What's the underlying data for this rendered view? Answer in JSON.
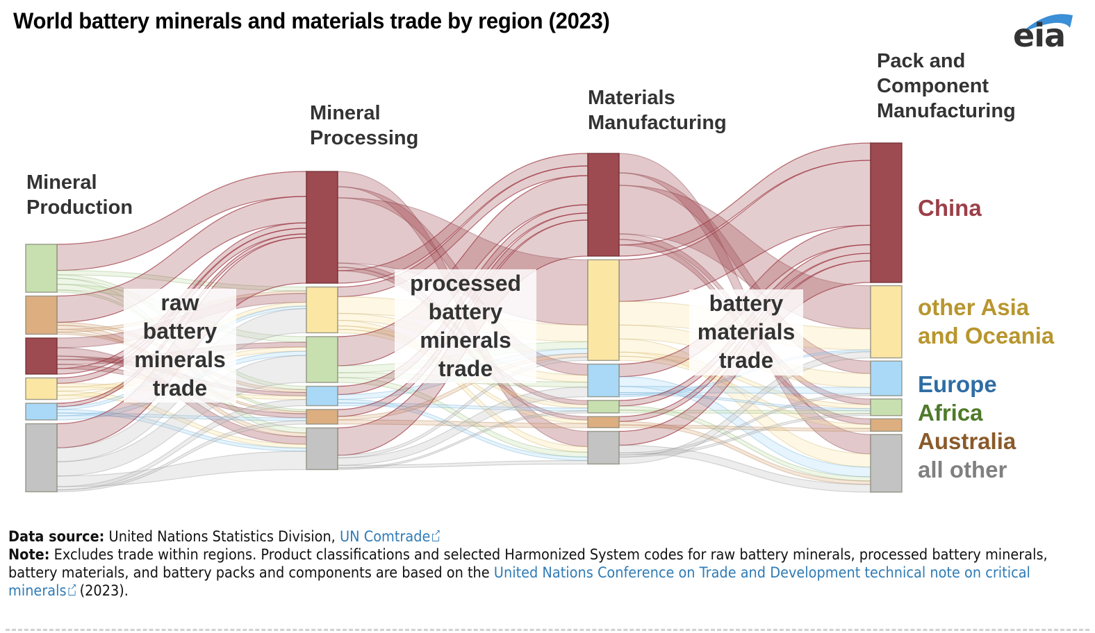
{
  "title": "World battery minerals and materials trade by region (2023)",
  "logo": {
    "text": "eia",
    "icon": "eia-swoosh-logo"
  },
  "stages": [
    {
      "id": "production",
      "label": "Mineral\nProduction"
    },
    {
      "id": "processing",
      "label": "Mineral\nProcessing"
    },
    {
      "id": "materials",
      "label": "Materials\nManufacturing"
    },
    {
      "id": "packs",
      "label": "Pack and\nComponent\nManufacturing"
    }
  ],
  "trade_labels": [
    "raw\nbattery\nminerals\ntrade",
    "processed\nbattery\nminerals\ntrade",
    "battery\nmaterials\ntrade"
  ],
  "regions": [
    {
      "id": "china",
      "label": "China",
      "fill": "#9e4a51",
      "text_color": "#9b3f48"
    },
    {
      "id": "asia",
      "label": "other Asia\nand Oceania",
      "fill": "#fbe6a3",
      "text_color": "#b8962e"
    },
    {
      "id": "europe",
      "label": "Europe",
      "fill": "#aad9f7",
      "text_color": "#2e6da4"
    },
    {
      "id": "africa",
      "label": "Africa",
      "fill": "#c8e0b0",
      "text_color": "#4f7a2a"
    },
    {
      "id": "australia",
      "label": "Australia",
      "fill": "#ddae80",
      "text_color": "#8a5a2a"
    },
    {
      "id": "other",
      "label": "all other",
      "fill": "#c3c3c3",
      "text_color": "#808080"
    }
  ],
  "chart_data": {
    "type": "sankey",
    "title": "World battery minerals and materials trade by region (2023)",
    "units": "relative share of traded value (estimated from band widths)",
    "stages": [
      "Mineral Production",
      "Mineral Processing",
      "Materials Manufacturing",
      "Pack and Component Manufacturing"
    ],
    "node_order": [
      [
        "africa",
        "australia",
        "china",
        "asia",
        "europe",
        "other"
      ],
      [
        "china",
        "asia",
        "africa",
        "europe",
        "australia",
        "other"
      ],
      [
        "china",
        "asia",
        "europe",
        "africa",
        "australia",
        "other"
      ],
      [
        "china",
        "asia",
        "europe",
        "africa",
        "australia",
        "other"
      ]
    ],
    "node_values": [
      {
        "africa": 69,
        "australia": 55,
        "china": 52,
        "asia": 31,
        "europe": 24,
        "other": 98
      },
      {
        "china": 161,
        "asia": 66,
        "africa": 66,
        "europe": 28,
        "australia": 21,
        "other": 60
      },
      {
        "china": 148,
        "asia": 145,
        "europe": 47,
        "africa": 18,
        "australia": 16,
        "other": 47
      },
      {
        "china": 201,
        "asia": 104,
        "europe": 50,
        "africa": 24,
        "australia": 18,
        "other": 83
      }
    ],
    "flows": [
      [
        {
          "from": "africa",
          "to": "china",
          "value": 36
        },
        {
          "from": "africa",
          "to": "asia",
          "value": 6
        },
        {
          "from": "africa",
          "to": "europe",
          "value": 5
        },
        {
          "from": "africa",
          "to": "other",
          "value": 8
        },
        {
          "from": "africa",
          "to": "africa",
          "value": 8
        },
        {
          "from": "africa",
          "to": "australia",
          "value": 3
        },
        {
          "from": "australia",
          "to": "china",
          "value": 38
        },
        {
          "from": "australia",
          "to": "europe",
          "value": 4
        },
        {
          "from": "australia",
          "to": "other",
          "value": 6
        },
        {
          "from": "australia",
          "to": "asia",
          "value": 4
        },
        {
          "from": "australia",
          "to": "australia",
          "value": 3
        },
        {
          "from": "china",
          "to": "asia",
          "value": 14
        },
        {
          "from": "china",
          "to": "other",
          "value": 12
        },
        {
          "from": "china",
          "to": "europe",
          "value": 5
        },
        {
          "from": "china",
          "to": "africa",
          "value": 7
        },
        {
          "from": "china",
          "to": "australia",
          "value": 6
        },
        {
          "from": "china",
          "to": "china",
          "value": 8
        },
        {
          "from": "asia",
          "to": "china",
          "value": 8
        },
        {
          "from": "asia",
          "to": "europe",
          "value": 5
        },
        {
          "from": "asia",
          "to": "africa",
          "value": 6
        },
        {
          "from": "asia",
          "to": "other",
          "value": 6
        },
        {
          "from": "asia",
          "to": "asia",
          "value": 6
        },
        {
          "from": "europe",
          "to": "china",
          "value": 5
        },
        {
          "from": "europe",
          "to": "asia",
          "value": 4
        },
        {
          "from": "europe",
          "to": "other",
          "value": 5
        },
        {
          "from": "europe",
          "to": "australia",
          "value": 4
        },
        {
          "from": "europe",
          "to": "africa",
          "value": 6
        },
        {
          "from": "other",
          "to": "china",
          "value": 66
        },
        {
          "from": "other",
          "to": "asia",
          "value": 38
        },
        {
          "from": "other",
          "to": "africa",
          "value": 39
        },
        {
          "from": "other",
          "to": "other",
          "value": 29
        },
        {
          "from": "other",
          "to": "europe",
          "value": 9
        },
        {
          "from": "other",
          "to": "australia",
          "value": 5
        }
      ],
      [
        {
          "from": "china",
          "to": "other",
          "value": 22
        },
        {
          "from": "china",
          "to": "europe",
          "value": 16
        },
        {
          "from": "china",
          "to": "asia",
          "value": 94
        },
        {
          "from": "china",
          "to": "africa",
          "value": 6
        },
        {
          "from": "china",
          "to": "australia",
          "value": 5
        },
        {
          "from": "china",
          "to": "china",
          "value": 18
        },
        {
          "from": "asia",
          "to": "china",
          "value": 14
        },
        {
          "from": "asia",
          "to": "asia",
          "value": 24
        },
        {
          "from": "asia",
          "to": "europe",
          "value": 10
        },
        {
          "from": "asia",
          "to": "other",
          "value": 8
        },
        {
          "from": "asia",
          "to": "africa",
          "value": 5
        },
        {
          "from": "asia",
          "to": "australia",
          "value": 5
        },
        {
          "from": "africa",
          "to": "china",
          "value": 42
        },
        {
          "from": "africa",
          "to": "asia",
          "value": 10
        },
        {
          "from": "africa",
          "to": "europe",
          "value": 7
        },
        {
          "from": "africa",
          "to": "other",
          "value": 7
        },
        {
          "from": "europe",
          "to": "china",
          "value": 12
        },
        {
          "from": "europe",
          "to": "asia",
          "value": 7
        },
        {
          "from": "europe",
          "to": "other",
          "value": 5
        },
        {
          "from": "europe",
          "to": "africa",
          "value": 4
        },
        {
          "from": "australia",
          "to": "china",
          "value": 10
        },
        {
          "from": "australia",
          "to": "asia",
          "value": 5
        },
        {
          "from": "australia",
          "to": "australia",
          "value": 6
        },
        {
          "from": "other",
          "to": "china",
          "value": 52
        },
        {
          "from": "other",
          "to": "asia",
          "value": 5
        },
        {
          "from": "other",
          "to": "europe",
          "value": 14
        },
        {
          "from": "other",
          "to": "other",
          "value": 5
        },
        {
          "from": "other",
          "to": "africa",
          "value": 3
        }
      ],
      [
        {
          "from": "china",
          "to": "other",
          "value": 28
        },
        {
          "from": "china",
          "to": "europe",
          "value": 18
        },
        {
          "from": "china",
          "to": "asia",
          "value": 70
        },
        {
          "from": "china",
          "to": "africa",
          "value": 8
        },
        {
          "from": "china",
          "to": "australia",
          "value": 8
        },
        {
          "from": "china",
          "to": "china",
          "value": 16
        },
        {
          "from": "asia",
          "to": "china",
          "value": 60
        },
        {
          "from": "asia",
          "to": "asia",
          "value": 34
        },
        {
          "from": "asia",
          "to": "europe",
          "value": 20
        },
        {
          "from": "asia",
          "to": "other",
          "value": 19
        },
        {
          "from": "asia",
          "to": "africa",
          "value": 6
        },
        {
          "from": "asia",
          "to": "australia",
          "value": 6
        },
        {
          "from": "europe",
          "to": "china",
          "value": 18
        },
        {
          "from": "europe",
          "to": "other",
          "value": 14
        },
        {
          "from": "europe",
          "to": "europe",
          "value": 9
        },
        {
          "from": "europe",
          "to": "africa",
          "value": 3
        },
        {
          "from": "europe",
          "to": "asia",
          "value": 3
        },
        {
          "from": "africa",
          "to": "china",
          "value": 8
        },
        {
          "from": "africa",
          "to": "other",
          "value": 6
        },
        {
          "from": "africa",
          "to": "africa",
          "value": 4
        },
        {
          "from": "australia",
          "to": "china",
          "value": 7
        },
        {
          "from": "australia",
          "to": "other",
          "value": 5
        },
        {
          "from": "australia",
          "to": "australia",
          "value": 4
        },
        {
          "from": "other",
          "to": "china",
          "value": 20
        },
        {
          "from": "other",
          "to": "other",
          "value": 11
        },
        {
          "from": "other",
          "to": "europe",
          "value": 3
        },
        {
          "from": "other",
          "to": "africa",
          "value": 3
        },
        {
          "from": "other",
          "to": "asia",
          "value": 10
        }
      ]
    ]
  },
  "footer": {
    "source_label": "Data source:",
    "source_text": " United Nations Statistics Division, ",
    "source_link": "UN Comtrade",
    "note_label": "Note:",
    "note_text": " Excludes trade within regions. Product classifications and selected Harmonized System codes for raw battery minerals, processed battery minerals, battery materials, and battery packs and components are based on the ",
    "note_link": "United Nations Conference on Trade and Development technical note on critical minerals",
    "note_tail": " (2023)."
  }
}
